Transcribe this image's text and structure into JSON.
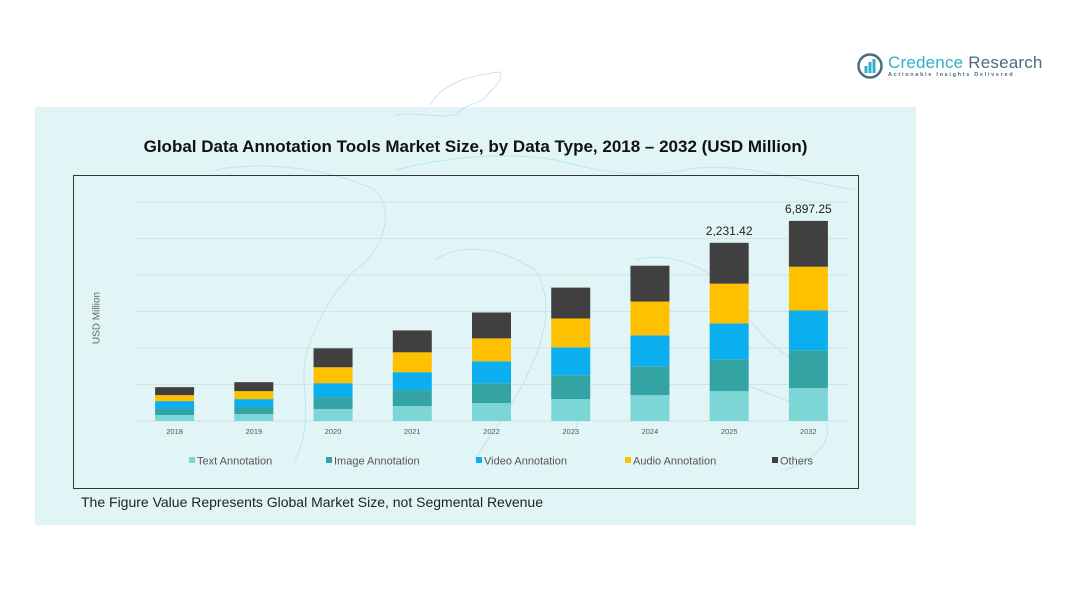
{
  "brand": {
    "name_part1": "Credence",
    "name_part2": " Research",
    "tagline": "Actionable Insights Delivered"
  },
  "colors": {
    "panel_bg": "#e2f5f6",
    "text_annotation": "#7dd6d6",
    "image_annotation": "#33a3a3",
    "video_annotation": "#0bafef",
    "audio_annotation": "#ffc000",
    "others": "#404040"
  },
  "footnote": "The Figure Value Represents Global Market Size, not Segmental Revenue",
  "chart_data": {
    "type": "bar",
    "stacked": true,
    "title": "Global Data Annotation Tools Market Size, by Data Type, 2018 – 2032 (USD Million)",
    "xlabel": "",
    "ylabel": "USD Million",
    "grid": true,
    "legend_position": "bottom",
    "categories": [
      "2018",
      "2019",
      "2020",
      "2021",
      "2022",
      "2023",
      "2024",
      "2025",
      "2032"
    ],
    "series": [
      {
        "name": "Text Annotation",
        "color": "#7dd6d6",
        "values": [
          6,
          7,
          12,
          15,
          18,
          22,
          26,
          30,
          33
        ]
      },
      {
        "name": "Image Annotation",
        "color": "#33a3a3",
        "values": [
          6,
          7,
          12,
          16,
          20,
          24,
          29,
          32,
          38
        ]
      },
      {
        "name": "Video Annotation",
        "color": "#0bafef",
        "values": [
          8,
          8,
          14,
          18,
          22,
          28,
          31,
          36,
          40
        ]
      },
      {
        "name": "Audio Annotation",
        "color": "#ffc000",
        "values": [
          6,
          8,
          16,
          20,
          23,
          29,
          34,
          40,
          44
        ]
      },
      {
        "name": "Others",
        "color": "#404040",
        "values": [
          8,
          9,
          19,
          22,
          26,
          31,
          36,
          41,
          46
        ]
      }
    ],
    "value_units": "relative (read from bar heights; axis has no numeric ticks)",
    "data_labels": [
      {
        "category": "2025",
        "text": "2,231.42"
      },
      {
        "category": "2032",
        "text": "6,897.25"
      }
    ],
    "ylim": [
      0,
      220
    ]
  }
}
